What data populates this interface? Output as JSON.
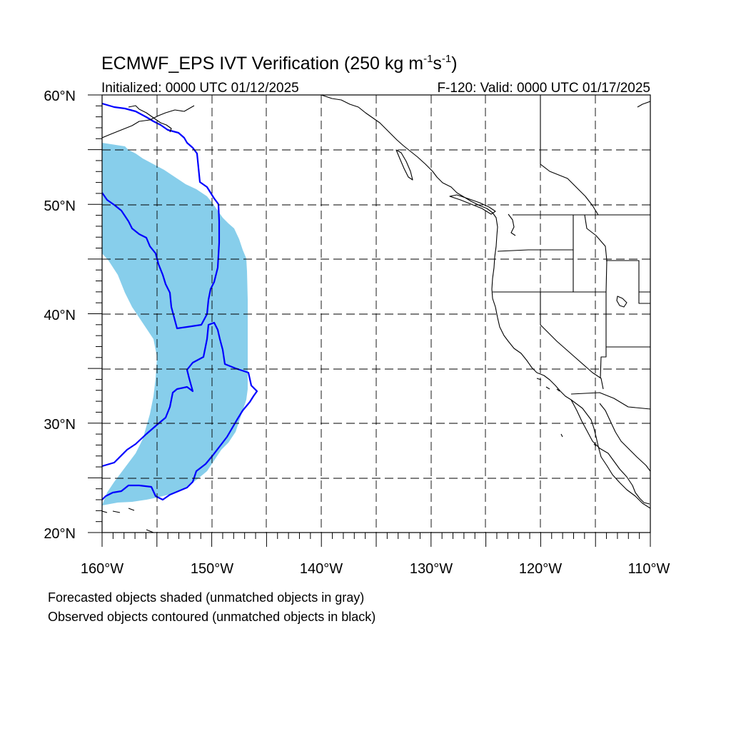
{
  "title_main": "ECMWF_EPS IVT Verification (250 kg m",
  "title_unit_exp_m": "-1",
  "title_unit_s": "s",
  "title_unit_exp_s": "-1",
  "title_close": ")",
  "subtitle_left": "Initialized: 0000 UTC 01/12/2025",
  "subtitle_right": "F-120: Valid: 0000 UTC 01/17/2025",
  "map": {
    "lon_range": [
      -160,
      -110
    ],
    "lat_range": [
      20,
      60
    ],
    "projection": "cylindrical equidistant",
    "grid": "dashed every 5 degrees",
    "lon_labels": [
      "160°W",
      "150°W",
      "140°W",
      "130°W",
      "120°W",
      "110°W"
    ],
    "lat_labels": [
      "20°N",
      "30°N",
      "40°N",
      "50°N",
      "60°N"
    ],
    "forecast_shading_color": "#87ceeb",
    "observed_contour_color": "#0000ff",
    "coastline_color": "#000000"
  },
  "legend_notes": [
    "Forecasted objects shaded (unmatched objects in gray)",
    "Observed objects contoured (unmatched objects in black)"
  ]
}
